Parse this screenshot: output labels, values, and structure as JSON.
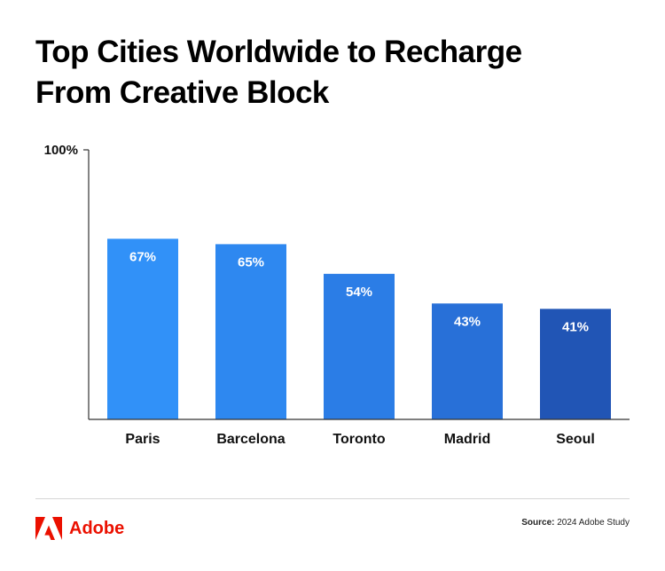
{
  "title_lines": [
    "Top Cities Worldwide to Recharge",
    "From Creative Block"
  ],
  "chart_data": {
    "type": "bar",
    "title": "Top Cities Worldwide to Recharge From Creative Block",
    "categories": [
      "Paris",
      "Barcelona",
      "Toronto",
      "Madrid",
      "Seoul"
    ],
    "values": [
      67,
      65,
      54,
      43,
      41
    ],
    "value_labels": [
      "67%",
      "65%",
      "54%",
      "43%",
      "41%"
    ],
    "ylim": [
      0,
      100
    ],
    "y_tick_label": "100%",
    "xlabel": "",
    "ylabel": "",
    "bar_colors": [
      "#3191f8",
      "#2e88f0",
      "#2b7de6",
      "#2870d8",
      "#2155b5"
    ],
    "grid": false
  },
  "footer": {
    "logo_text": "Adobe",
    "brand_color": "#eb1000",
    "source_label": "Source:",
    "source_text": "2024 Adobe Study"
  }
}
